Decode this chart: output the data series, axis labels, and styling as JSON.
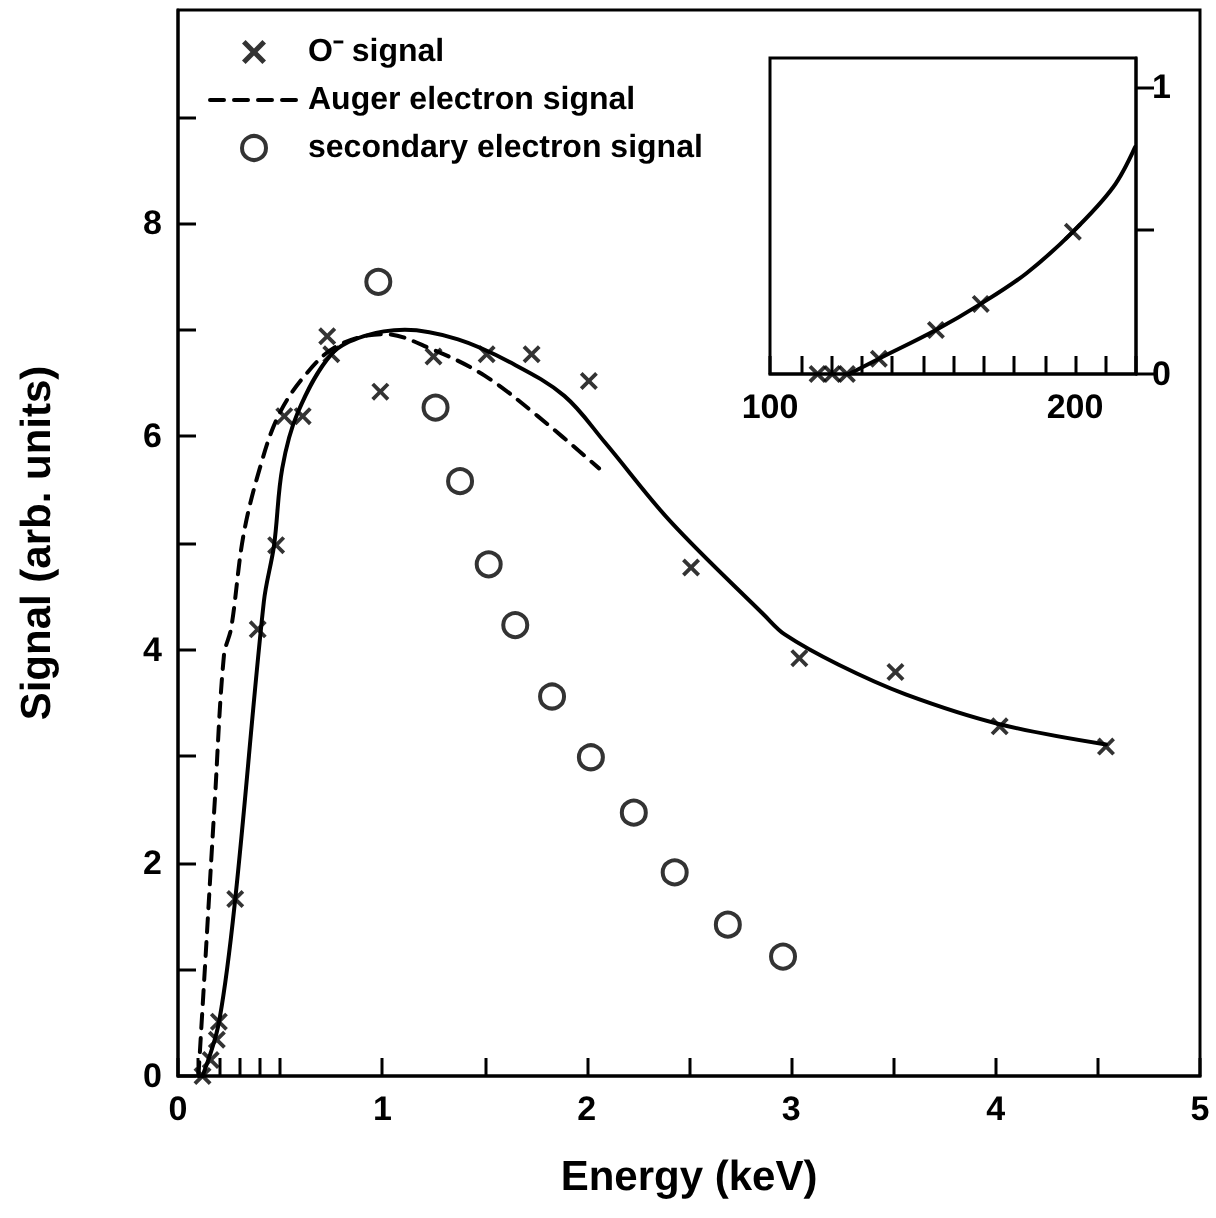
{
  "chart_data": [
    {
      "type": "line",
      "xlabel": "Energy (keV)",
      "ylabel": "Signal (arb. units)",
      "xlim": [
        0,
        5
      ],
      "ylim": [
        0,
        10
      ],
      "legend": "top left",
      "grid": false,
      "xticks": [
        0,
        {
          "value": 0.1,
          "label": null
        },
        {
          "value": 0.2,
          "label": null
        },
        {
          "value": 0.3,
          "label": null
        },
        {
          "value": 0.4,
          "label": null
        },
        {
          "value": 0.5,
          "label": null
        },
        1,
        {
          "value": 1.5,
          "label": null
        },
        2,
        {
          "value": 2.5,
          "label": null
        },
        3,
        {
          "value": 3.5,
          "label": null
        },
        4,
        {
          "value": 4.5,
          "label": null
        },
        5
      ],
      "yticks": [
        0,
        {
          "value": 1,
          "label": null
        },
        2,
        {
          "value": 3,
          "label": null
        },
        4,
        {
          "value": 5,
          "label": null
        },
        6,
        {
          "value": 7,
          "label": null
        },
        8,
        {
          "value": 9,
          "label": null
        }
      ],
      "series": [
        {
          "type": "scatter",
          "name": "O⁻ signal",
          "color": "#000000",
          "marker": "cross",
          "x": [
            0.12,
            0.16,
            0.19,
            0.2,
            0.28,
            0.39,
            0.48,
            0.52,
            0.61,
            0.73,
            0.75,
            0.99,
            1.25,
            1.51,
            1.73,
            2.01,
            2.51,
            3.04,
            3.51,
            4.02,
            4.54
          ],
          "values": [
            0.0,
            0.15,
            0.34,
            0.51,
            1.66,
            4.19,
            4.98,
            6.19,
            6.19,
            6.94,
            6.77,
            6.42,
            6.75,
            6.77,
            6.77,
            6.52,
            4.77,
            3.92,
            3.79,
            3.28,
            3.09
          ]
        },
        {
          "type": "line",
          "color": "#000000",
          "marker": "none",
          "line_style": "solid",
          "x": [
            0.12,
            0.2,
            0.28,
            0.42,
            0.47,
            0.51,
            0.585,
            0.75,
            0.91,
            1.11,
            1.37,
            1.63,
            1.89,
            2.09,
            2.41,
            2.87,
            2.97,
            3.23,
            3.56,
            4.02,
            4.54
          ],
          "values": [
            0.0,
            0.5,
            1.66,
            4.45,
            4.98,
            5.7,
            6.22,
            6.77,
            6.94,
            7.0,
            6.91,
            6.69,
            6.38,
            5.94,
            5.2,
            4.32,
            4.14,
            3.86,
            3.58,
            3.3,
            3.11
          ]
        },
        {
          "type": "line",
          "name": "Auger electron signal",
          "color": "#000000",
          "marker": "none",
          "line_style": "dashed",
          "x": [
            0.1,
            0.13,
            0.18,
            0.225,
            0.26,
            0.32,
            0.4,
            0.49,
            0.62,
            0.78,
            1.01,
            1.24,
            1.5,
            1.76,
            2.06
          ],
          "values": [
            0.0,
            0.96,
            2.58,
            3.95,
            4.2,
            5.07,
            5.7,
            6.19,
            6.57,
            6.85,
            6.96,
            6.82,
            6.57,
            6.19,
            5.7
          ]
        },
        {
          "type": "scatter",
          "name": "secondary electron signal",
          "color": "#000000",
          "marker": "circle",
          "x": [
            0.98,
            1.26,
            1.38,
            1.52,
            1.65,
            1.83,
            2.02,
            2.23,
            2.43,
            2.69,
            2.96
          ],
          "values": [
            7.45,
            6.27,
            5.58,
            4.8,
            4.23,
            3.56,
            2.99,
            2.47,
            1.91,
            1.42,
            1.12
          ]
        }
      ]
    },
    {
      "type": "line",
      "xlim": [
        100,
        220
      ],
      "ylim": [
        0,
        1.1
      ],
      "grid": false,
      "xticks": [
        100,
        {
          "value": 110,
          "label": null
        },
        {
          "value": 120,
          "label": null
        },
        {
          "value": 130,
          "label": null
        },
        {
          "value": 140,
          "label": null
        },
        {
          "value": 150,
          "label": null
        },
        {
          "value": 160,
          "label": null
        },
        {
          "value": 170,
          "label": null
        },
        {
          "value": 180,
          "label": null
        },
        {
          "value": 190,
          "label": null
        },
        200,
        {
          "value": 210,
          "label": null
        },
        {
          "value": 220,
          "label": null
        }
      ],
      "yticks": [
        0,
        {
          "value": 0.5,
          "label": null
        },
        1
      ],
      "series": [
        {
          "type": "scatter",
          "color": "#000000",
          "marker": "cross",
          "x": [
            115.6,
            120.4,
            125.2,
            135.7,
            154.4,
            169.1,
            199.3
          ],
          "values": [
            0,
            0,
            0,
            0.053,
            0.153,
            0.244,
            0.495
          ]
        },
        {
          "type": "line",
          "color": "#000000",
          "marker": "none",
          "line_style": "solid",
          "x": [
            125.9,
            135.7,
            154.4,
            169.1,
            184,
            199.3,
            212.5,
            219.7
          ],
          "values": [
            0,
            0.053,
            0.153,
            0.244,
            0.35,
            0.495,
            0.65,
            0.79
          ]
        }
      ]
    }
  ]
}
